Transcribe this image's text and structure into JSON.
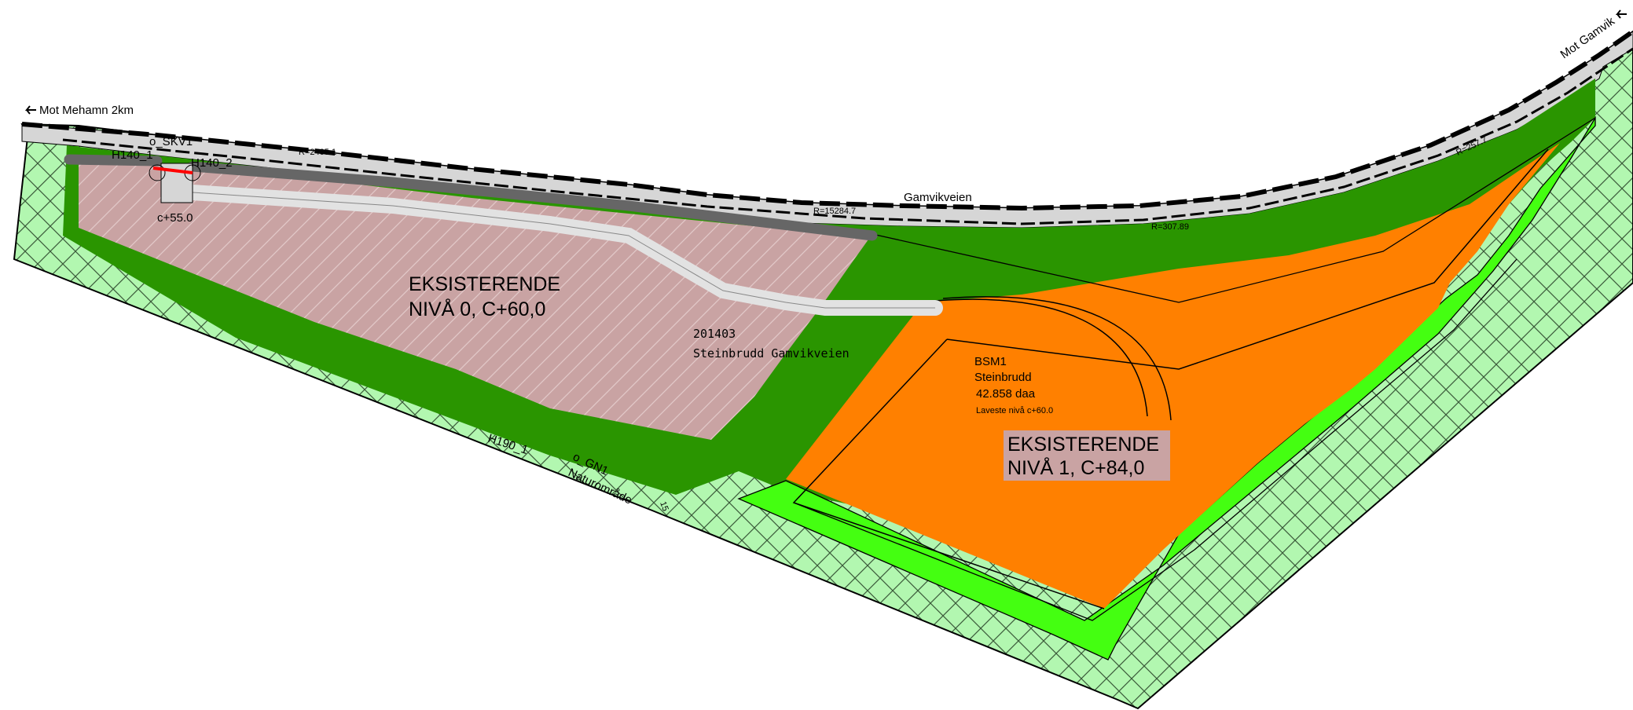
{
  "labels": {
    "mot_mehamn": "Mot Mehamn 2km",
    "mot_gamvik": "Mot Gamvik",
    "road_name": "Gamvikveien",
    "o_skv1": "o_SKV1",
    "h140_1": "H140_1",
    "h140_2": "H140_2",
    "c55": "c+55.0",
    "plan_id": "201403",
    "plan_name": "Steinbrudd Gamvikveien",
    "level0_line1": "EKSISTERENDE",
    "level0_line2": "NIVÅ 0, C+60,0",
    "bsm1": "BSM1",
    "bsm1_use": "Steinbrudd",
    "bsm1_area": "42.858 daa",
    "bsm1_lowest": "Laveste nivå c+60.0",
    "level1_line1": "EKSISTERENDE",
    "level1_line2": "NIVÅ 1, C+84,0",
    "h190": "H190_1",
    "o_gn1": "o_GN1",
    "naturomrade": "Naturområde",
    "r1": "R=2405.1",
    "r2": "R=15284.7",
    "r3": "R=307.89",
    "r4": "R=257.7",
    "marker": "15"
  },
  "colors": {
    "nature_area": "#b2f7b0",
    "green_zone": "#2a9500",
    "bright_green": "#44ff11",
    "quarry_orange": "#ff8000",
    "existing_level0": "#c9a3a3",
    "road_grey": "#d6d6d6",
    "dark_road": "#666666",
    "pale_road": "#e2e2e2",
    "red_mark": "#ff0000"
  },
  "icons": {
    "mehamn_arrow": "arrow-left-icon",
    "gamvik_arrow": "arrow-left-icon"
  }
}
